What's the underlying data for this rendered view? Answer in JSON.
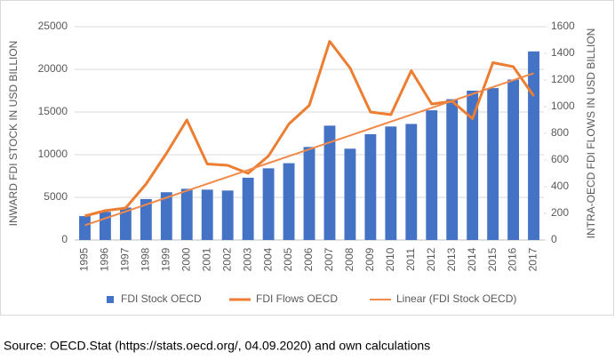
{
  "chart_data": {
    "type": "bar-line",
    "categories": [
      "1995",
      "1996",
      "1997",
      "1998",
      "1999",
      "2000",
      "2001",
      "2002",
      "2003",
      "2004",
      "2005",
      "2006",
      "2007",
      "2008",
      "2009",
      "2010",
      "2011",
      "2012",
      "2013",
      "2014",
      "2015",
      "2016",
      "2017"
    ],
    "ylabel": "INWARD FDI STOCK IN USD BILLION",
    "y2label": "INTRA-OECD FDI FLOWS IN USD BILLION",
    "ylim": [
      0,
      25000
    ],
    "yticks": [
      0,
      5000,
      10000,
      15000,
      20000,
      25000
    ],
    "y2lim": [
      0,
      1600
    ],
    "y2ticks": [
      0,
      200,
      400,
      600,
      800,
      1000,
      1200,
      1400,
      1600
    ],
    "grid": true,
    "legend": "bottom",
    "series": [
      {
        "name": "FDI Stock OECD",
        "type": "bar",
        "color": "#4472c4",
        "values": [
          2800,
          3300,
          3800,
          4800,
          5600,
          6000,
          5900,
          5800,
          7300,
          8400,
          9000,
          10900,
          13400,
          10700,
          12400,
          13300,
          13600,
          15200,
          16500,
          17500,
          17800,
          18800,
          22100
        ]
      },
      {
        "name": "FDI Flows OECD",
        "type": "line",
        "axis": "y2",
        "color": "#ed7d31",
        "values": [
          180,
          220,
          240,
          420,
          650,
          900,
          570,
          560,
          500,
          630,
          870,
          1010,
          1490,
          1290,
          960,
          940,
          1270,
          1020,
          1040,
          910,
          1330,
          1300,
          1080
        ]
      },
      {
        "name": "Linear (FDI Stock OECD)",
        "type": "line",
        "color": "#f0894a",
        "values": [
          1720,
          2530,
          3340,
          4150,
          4960,
          5770,
          6580,
          7390,
          8200,
          9010,
          9820,
          10630,
          11440,
          12250,
          13060,
          13870,
          14680,
          15490,
          16300,
          17110,
          17920,
          18730,
          19540
        ]
      }
    ]
  },
  "source": "Source: OECD.Stat (https://stats.oecd.org/, 04.09.2020) and own calculations"
}
